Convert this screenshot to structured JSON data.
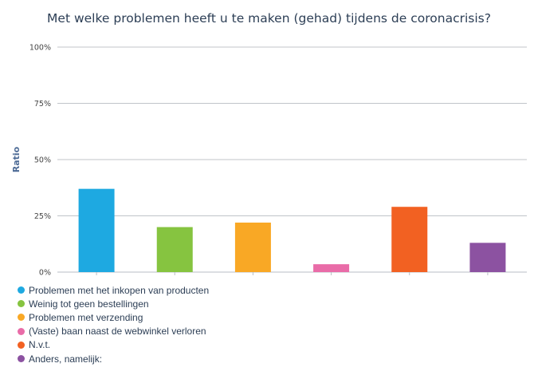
{
  "chart_data": {
    "type": "bar",
    "title": "Met welke problemen heeft u te maken (gehad) tijdens de coronacrisis?",
    "ylabel": "Ratio",
    "xlabel": "",
    "ylim": [
      0,
      100
    ],
    "yticks": [
      {
        "value": 0,
        "label": "0%"
      },
      {
        "value": 25,
        "label": "25%"
      },
      {
        "value": 50,
        "label": "50%"
      },
      {
        "value": 75,
        "label": "75%"
      },
      {
        "value": 100,
        "label": "100%"
      }
    ],
    "grid": true,
    "legend_position": "bottom-left",
    "categories": [
      "Problemen met het inkopen van producten",
      "Weinig tot geen bestellingen",
      "Problemen met verzending",
      "(Vaste) baan naast de webwinkel verloren",
      "N.v.t.",
      "Anders, namelijk:"
    ],
    "values": [
      37,
      20,
      22,
      3.5,
      29,
      13
    ],
    "colors": [
      "#1ea9e1",
      "#86c440",
      "#f9a825",
      "#e96ca8",
      "#f26122",
      "#8c52a1"
    ]
  }
}
